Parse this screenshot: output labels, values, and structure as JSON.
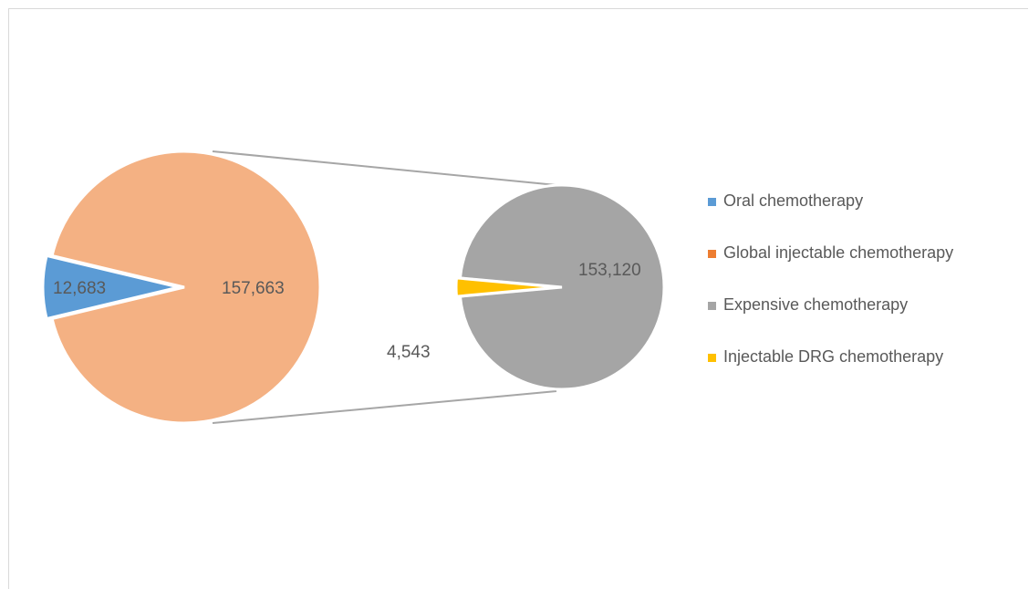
{
  "chart_data": {
    "type": "pie",
    "subtype": "pie-of-pie",
    "primary_pie": {
      "slices": [
        {
          "name": "Oral chemotherapy",
          "value": 12683,
          "label": "12,683",
          "color": "#5B9BD5",
          "exploded": true
        },
        {
          "name": "Global injectable chemotherapy",
          "value": 157663,
          "label": "157,663",
          "color": "#F4B183",
          "exploded": false
        }
      ],
      "expanded_slice": "Global injectable chemotherapy"
    },
    "secondary_pie": {
      "slices": [
        {
          "name": "Injectable DRG chemotherapy",
          "value": 4543,
          "label": "4,543",
          "color": "#FFC000",
          "exploded": true
        },
        {
          "name": "Expensive chemotherapy",
          "value": 153120,
          "label": "153,120",
          "color": "#A5A5A5",
          "exploded": false
        }
      ]
    },
    "legend": {
      "position": "right",
      "entries": [
        {
          "name": "Oral chemotherapy",
          "color": "#5B9BD5"
        },
        {
          "name": "Global injectable chemotherapy",
          "color": "#ED7D31"
        },
        {
          "name": "Expensive chemotherapy",
          "color": "#A5A5A5"
        },
        {
          "name": "Injectable DRG chemotherapy",
          "color": "#FFC000"
        }
      ]
    },
    "connector_color": "#A6A6A6",
    "border_color": "#D9D9D9"
  }
}
